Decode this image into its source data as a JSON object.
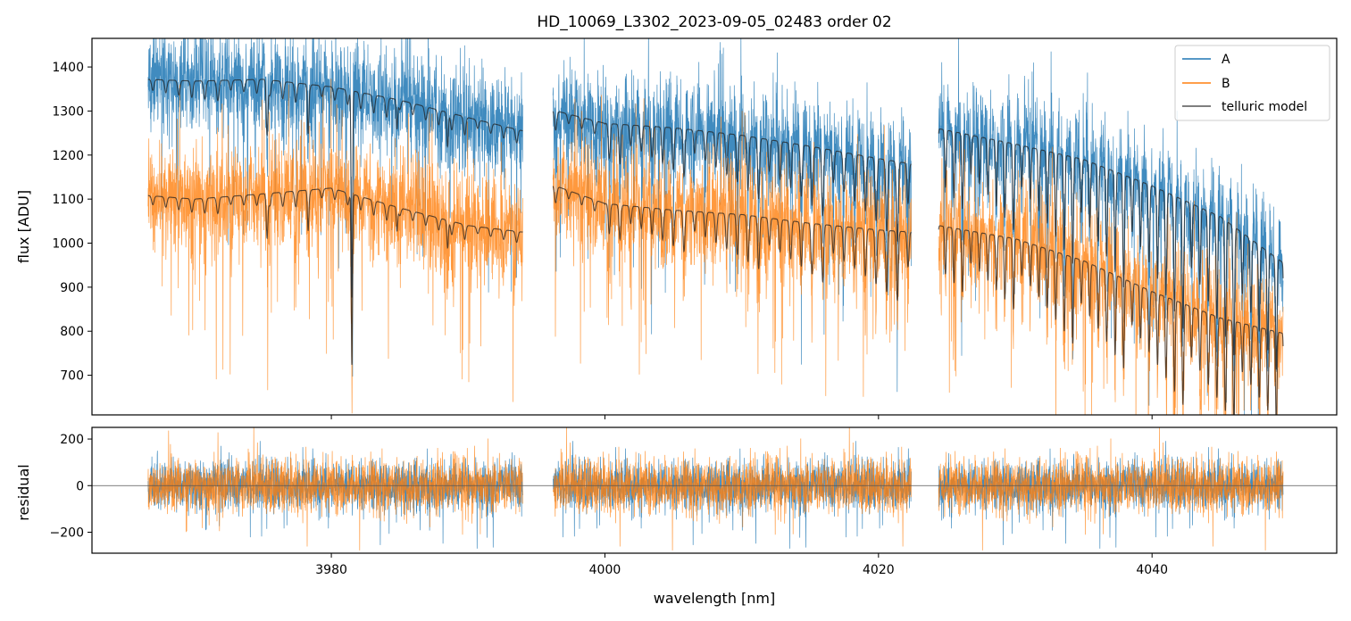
{
  "chart_data": {
    "type": "line",
    "title": "HD_10069_L3302_2023-09-05_02483  order 02",
    "xlabel": "wavelength [nm]",
    "xlim": [
      3962.5,
      4053.5
    ],
    "x_ticks": [
      3980,
      4000,
      4020,
      4040
    ],
    "x_tick_labels": [
      "3980",
      "4000",
      "4020",
      "4040"
    ],
    "segments": [
      [
        3966.6,
        3994.0
      ],
      [
        3996.2,
        4022.4
      ],
      [
        4024.4,
        4049.6
      ]
    ],
    "top_panel": {
      "ylabel": "flux [ADU]",
      "ylim": [
        610,
        1465
      ],
      "y_ticks": [
        700,
        800,
        900,
        1000,
        1100,
        1200,
        1300,
        1400
      ],
      "y_tick_labels": [
        "700",
        "800",
        "900",
        "1000",
        "1100",
        "1200",
        "1300",
        "1400"
      ],
      "series": [
        {
          "name": "A",
          "color": "#1f77b4",
          "continuum_x": [
            3966.6,
            3970,
            3975,
            3980,
            3985,
            3990,
            3994.0,
            3996.2,
            4000,
            4005,
            4010,
            4015,
            4020,
            4022.4,
            4024.4,
            4030,
            4035,
            4040,
            4045,
            4049.6
          ],
          "continuum_y": [
            1372,
            1368,
            1372,
            1355,
            1325,
            1285,
            1255,
            1302,
            1272,
            1262,
            1245,
            1220,
            1192,
            1180,
            1260,
            1225,
            1190,
            1130,
            1060,
            955
          ]
        },
        {
          "name": "B",
          "color": "#ff7f0e",
          "continuum_x": [
            3966.6,
            3970,
            3975,
            3980,
            3985,
            3990,
            3994.0,
            3996.2,
            4000,
            4005,
            4010,
            4015,
            4020,
            4022.4,
            4024.4,
            4030,
            4035,
            4040,
            4045,
            4049.6
          ],
          "continuum_y": [
            1108,
            1100,
            1112,
            1125,
            1080,
            1040,
            1025,
            1132,
            1090,
            1075,
            1065,
            1045,
            1030,
            1025,
            1040,
            1010,
            960,
            890,
            830,
            795
          ]
        },
        {
          "name": "telluric model",
          "color": "#555555"
        }
      ]
    },
    "bottom_panel": {
      "ylabel": "residual",
      "ylim": [
        -290,
        250
      ],
      "y_ticks": [
        -200,
        0,
        200
      ],
      "y_tick_labels": [
        "−200",
        "0",
        "200"
      ],
      "zero_line": 0
    },
    "legend": {
      "placement": "top-right",
      "entries": [
        "A",
        "B",
        "telluric model"
      ]
    }
  }
}
